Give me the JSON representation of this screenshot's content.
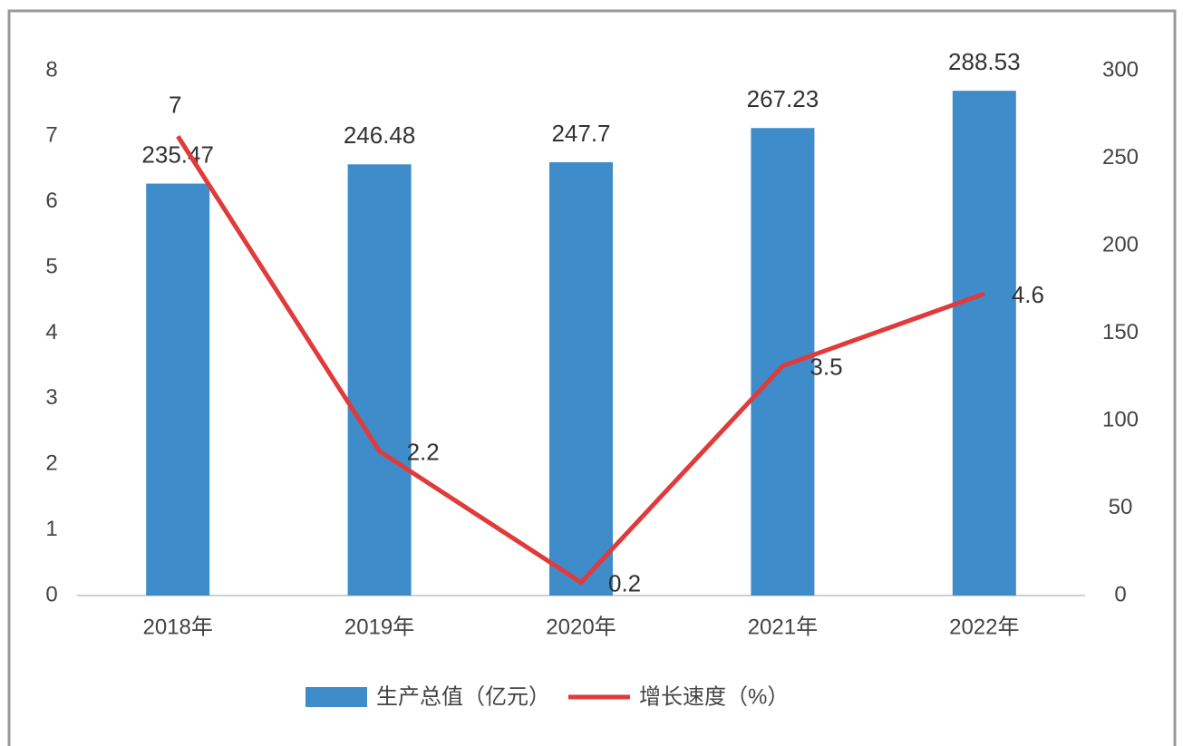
{
  "chart_data": {
    "type": "bar",
    "categories": [
      "2018年",
      "2019年",
      "2020年",
      "2021年",
      "2022年"
    ],
    "series": [
      {
        "name": "生产总值（亿元）",
        "type": "bar",
        "axis": "y2",
        "color": "#3f8ccb",
        "values": [
          235.47,
          246.48,
          247.7,
          267.23,
          288.53
        ]
      },
      {
        "name": "增长速度（%）",
        "type": "line",
        "axis": "y",
        "color": "#e03a3a",
        "values": [
          7,
          2.2,
          0.2,
          3.5,
          4.6
        ]
      }
    ],
    "ylim": [
      0,
      8
    ],
    "yticks": [
      0,
      1,
      2,
      3,
      4,
      5,
      6,
      7,
      8
    ],
    "y2lim": [
      0,
      300
    ],
    "y2ticks": [
      0,
      50,
      100,
      150,
      200,
      250,
      300
    ],
    "legend": "bottom",
    "grid": false
  }
}
